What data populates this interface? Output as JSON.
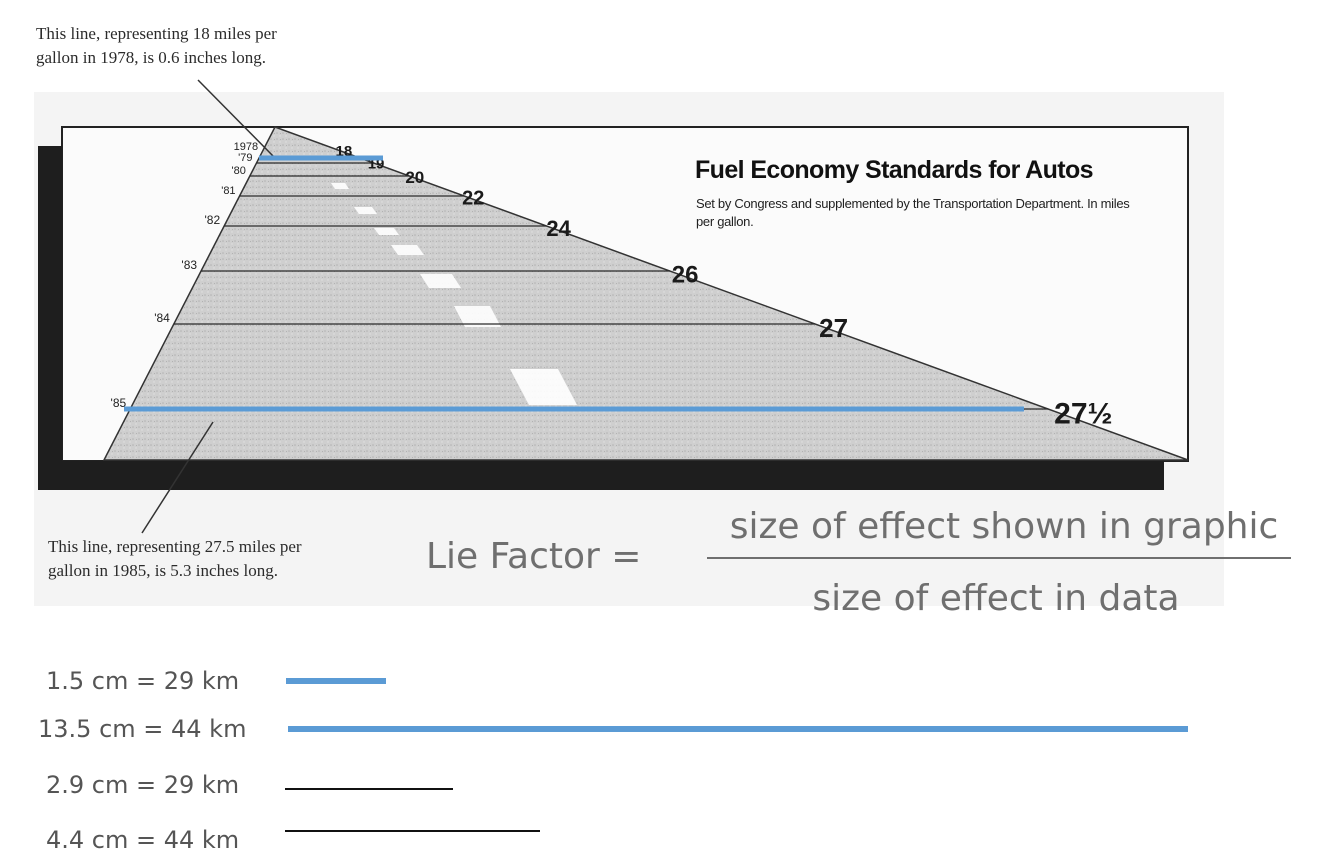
{
  "annotations": {
    "top": "This line, representing 18 miles per\ngallon in 1978, is 0.6 inches long.",
    "bottom": "This line, representing 27.5 miles per\ngallon in 1985, is 5.3 inches long."
  },
  "chart_data": {
    "type": "bar",
    "title": "Fuel Economy Standards for Autos",
    "subtitle": "Set by Congress and supplemented by the Transportation Department. In miles per gallon.",
    "categories": [
      "1978",
      "'79",
      "'80",
      "'81",
      "'82",
      "'83",
      "'84",
      "'85"
    ],
    "value_labels": [
      "18",
      "19",
      "20",
      "22",
      "24",
      "26",
      "27",
      "27½"
    ],
    "values": [
      18,
      19,
      20,
      22,
      24,
      26,
      27,
      27.5
    ],
    "orientation": "horizontal",
    "grid": false
  },
  "highlight_color": "#5b9bd5",
  "formula": {
    "lhs": "Lie Factor =",
    "numerator": "size of effect shown in graphic",
    "denominator": "size of effect in data"
  },
  "comparison": [
    {
      "label": "1.5 cm =  29 km",
      "color": "#5b9bd5",
      "value_cm": 1.5
    },
    {
      "label": "13.5 cm =  44 km",
      "color": "#5b9bd5",
      "value_cm": 13.5
    },
    {
      "label": "2.9 cm =  29 km",
      "color": "#111111",
      "value_cm": 2.9
    },
    {
      "label": "4.4 cm =  44 km",
      "color": "#111111",
      "value_cm": 4.4
    }
  ]
}
